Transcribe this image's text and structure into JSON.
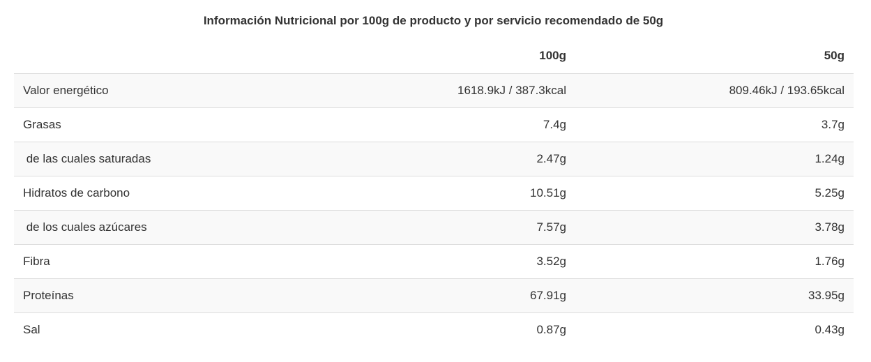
{
  "title": "Información Nutricional por 100g de producto y por servicio recomendado de 50g",
  "columns": [
    "",
    "100g",
    "50g"
  ],
  "rows": [
    {
      "label": "Valor energético",
      "per100": "1618.9kJ / 387.3kcal",
      "per50": "809.46kJ / 193.65kcal"
    },
    {
      "label": "Grasas",
      "per100": "7.4g",
      "per50": "3.7g"
    },
    {
      "label": " de las cuales saturadas",
      "per100": "2.47g",
      "per50": "1.24g"
    },
    {
      "label": "Hidratos de carbono",
      "per100": "10.51g",
      "per50": "5.25g"
    },
    {
      "label": " de los cuales azúcares",
      "per100": "7.57g",
      "per50": "3.78g"
    },
    {
      "label": "Fibra",
      "per100": "3.52g",
      "per50": "1.76g"
    },
    {
      "label": "Proteínas",
      "per100": "67.91g",
      "per50": "33.95g"
    },
    {
      "label": "Sal",
      "per100": "0.87g",
      "per50": "0.43g"
    }
  ]
}
